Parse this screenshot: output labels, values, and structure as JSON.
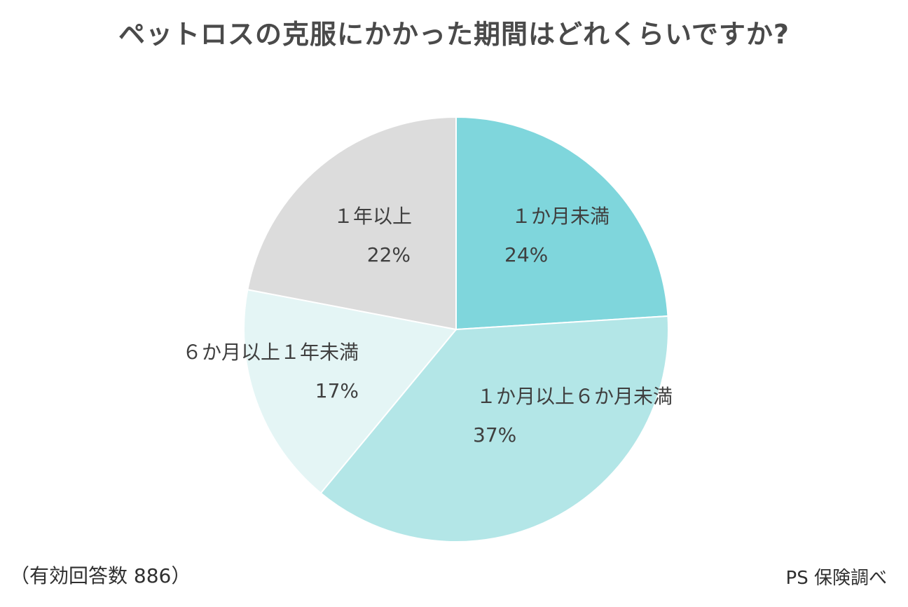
{
  "chart_data": {
    "type": "pie",
    "title": "ペットロスの克服にかかった期間はどれくらいですか?",
    "slices": [
      {
        "label": "１か月未満",
        "value": 24,
        "value_label": "24%",
        "color": "#7fd6dc"
      },
      {
        "label": "１か月以上６か月未満",
        "value": 37,
        "value_label": "37%",
        "color": "#b3e6e7"
      },
      {
        "label": "６か月以上１年未満",
        "value": 17,
        "value_label": "17%",
        "color": "#e4f5f5"
      },
      {
        "label": "１年以上",
        "value": 22,
        "value_label": "22%",
        "color": "#dcdcdc"
      }
    ],
    "start_angle": "12 o'clock",
    "direction": "clockwise",
    "legend": "none (labels inside slices)"
  },
  "footer": {
    "respondents": "（有効回答数 886）",
    "source": "PS 保険調べ"
  }
}
